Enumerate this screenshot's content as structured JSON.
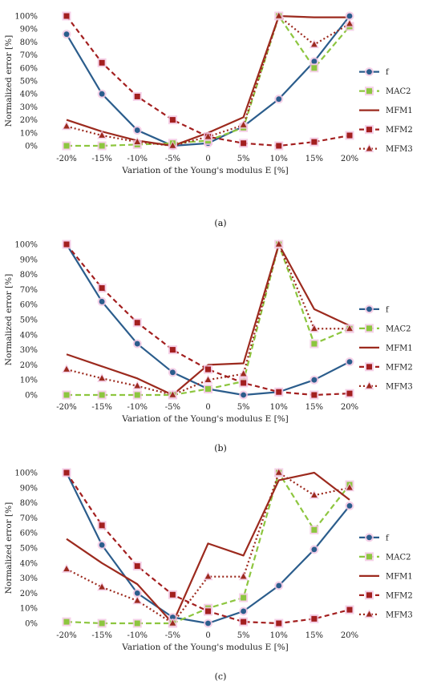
{
  "chart_data": [
    {
      "type": "line",
      "panel_label": "(a)",
      "xlabel": "Variation of the Young's modulus E [%]",
      "ylabel": "Normalized error [%]",
      "categories": [
        "-20%",
        "-15%",
        "-10%",
        "-5%",
        "0",
        "5%",
        "10%",
        "15%",
        "20%"
      ],
      "ylim": [
        0,
        100
      ],
      "yticks": [
        "0%",
        "10%",
        "20%",
        "30%",
        "40%",
        "50%",
        "60%",
        "70%",
        "80%",
        "90%",
        "100%"
      ],
      "legend_position": "right",
      "series": [
        {
          "name": "f",
          "values": [
            86,
            40,
            12,
            0,
            2,
            15,
            36,
            65,
            100
          ]
        },
        {
          "name": "MAC2",
          "values": [
            0,
            0,
            1,
            2,
            4,
            14,
            100,
            60,
            92
          ]
        },
        {
          "name": "MFM1",
          "values": [
            20,
            11,
            4,
            0,
            10,
            22,
            100,
            99,
            99
          ]
        },
        {
          "name": "MFM2",
          "values": [
            100,
            64,
            38,
            20,
            7,
            2,
            0,
            3,
            8
          ]
        },
        {
          "name": "MFM3",
          "values": [
            15,
            8,
            3,
            0,
            7,
            16,
            100,
            78,
            94
          ]
        }
      ]
    },
    {
      "type": "line",
      "panel_label": "(b)",
      "xlabel": "Variation of the Young's modulus E [%]",
      "ylabel": "Normalized error [%]",
      "categories": [
        "-20%",
        "-15%",
        "-10%",
        "-5%",
        "0",
        "5%",
        "10%",
        "15%",
        "20%"
      ],
      "ylim": [
        0,
        100
      ],
      "yticks": [
        "0%",
        "10%",
        "20%",
        "30%",
        "40%",
        "50%",
        "60%",
        "70%",
        "80%",
        "90%",
        "100%"
      ],
      "legend_position": "right",
      "series": [
        {
          "name": "f",
          "values": [
            100,
            62,
            34,
            15,
            4,
            0,
            2,
            10,
            22
          ]
        },
        {
          "name": "MAC2",
          "values": [
            0,
            0,
            0,
            0,
            4,
            9,
            100,
            34,
            44
          ]
        },
        {
          "name": "MFM1",
          "values": [
            27,
            19,
            11,
            0,
            20,
            21,
            100,
            57,
            46
          ]
        },
        {
          "name": "MFM2",
          "values": [
            100,
            71,
            48,
            30,
            17,
            8,
            2,
            0,
            1
          ]
        },
        {
          "name": "MFM3",
          "values": [
            17,
            11,
            6,
            0,
            10,
            14,
            100,
            44,
            44
          ]
        }
      ]
    },
    {
      "type": "line",
      "panel_label": "(c)",
      "xlabel": "Variation of the Young's modulus E [%]",
      "ylabel": "Normalized error [%]",
      "categories": [
        "-20%",
        "-15%",
        "-10%",
        "-5%",
        "0",
        "5%",
        "10%",
        "15%",
        "20%"
      ],
      "ylim": [
        0,
        100
      ],
      "yticks": [
        "0%",
        "10%",
        "20%",
        "30%",
        "40%",
        "50%",
        "60%",
        "70%",
        "80%",
        "90%",
        "100%"
      ],
      "legend_position": "right",
      "series": [
        {
          "name": "f",
          "values": [
            100,
            52,
            20,
            4,
            0,
            8,
            25,
            49,
            78
          ]
        },
        {
          "name": "MAC2",
          "values": [
            1,
            0,
            0,
            0,
            10,
            17,
            100,
            62,
            92
          ]
        },
        {
          "name": "MFM1",
          "values": [
            56,
            40,
            26,
            0,
            53,
            45,
            95,
            100,
            82
          ]
        },
        {
          "name": "MFM2",
          "values": [
            100,
            65,
            38,
            19,
            8,
            1,
            0,
            3,
            9
          ]
        },
        {
          "name": "MFM3",
          "values": [
            36,
            24,
            15,
            0,
            31,
            31,
            100,
            85,
            90
          ]
        }
      ]
    }
  ],
  "series_styles": {
    "f": {
      "color": "#2b5d8c",
      "dash": "",
      "marker": "circle"
    },
    "MAC2": {
      "color": "#8dc63f",
      "dash": "7 4",
      "marker": "square"
    },
    "MFM1": {
      "color": "#9c2a1e",
      "dash": "",
      "marker": "none"
    },
    "MFM2": {
      "color": "#a31f1f",
      "dash": "6 4",
      "marker": "square"
    },
    "MFM3": {
      "color": "#9c2a1e",
      "dash": "2 3",
      "marker": "triangle"
    }
  },
  "marker_glow": "#f3c6e2"
}
